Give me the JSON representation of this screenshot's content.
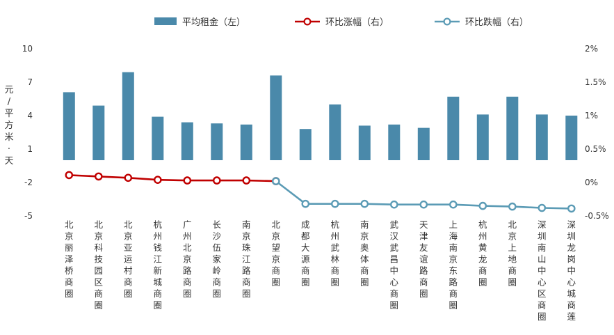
{
  "chart_data": {
    "type": "bar",
    "categories": [
      "北京丽泽桥商圈",
      "北京科技园区商圈",
      "北京亚运村商圈",
      "杭州钱江新城商圈",
      "广州北京路商圈",
      "长沙伍家岭商圈",
      "南京珠江路商圈",
      "北京望京商圈",
      "成都大源商圈",
      "杭州武林商圈",
      "南京奥体商圈",
      "武汉武昌中心商圈",
      "天津友谊路商圈",
      "上海南京东路商圈",
      "杭州黄龙商圈",
      "北京上地商圈",
      "深圳南山中心区商圈",
      "深圳龙岗中心城商莲"
    ],
    "series": [
      {
        "name": "平均租金（左）",
        "axis": "left",
        "kind": "bar",
        "color": "#4a89aa",
        "values": [
          6.1,
          4.9,
          7.9,
          3.9,
          3.4,
          3.3,
          3.2,
          7.6,
          2.8,
          5.0,
          3.1,
          3.2,
          2.9,
          5.7,
          4.1,
          5.7,
          4.1,
          4.0
        ]
      },
      {
        "name": "环比涨幅（右）",
        "axis": "right",
        "kind": "line",
        "color": "#c00000",
        "values": [
          0.011,
          0.009,
          0.007,
          0.004,
          0.003,
          0.003,
          0.003,
          0.002,
          null,
          null,
          null,
          null,
          null,
          null,
          null,
          null,
          null,
          null
        ]
      },
      {
        "name": "环比跌幅（右）",
        "axis": "right",
        "kind": "line",
        "color": "#5b9bb5",
        "values": [
          null,
          null,
          null,
          null,
          null,
          null,
          null,
          0.002,
          -0.032,
          -0.032,
          -0.032,
          -0.033,
          -0.033,
          -0.033,
          -0.035,
          -0.036,
          -0.038,
          -0.039
        ]
      }
    ],
    "ylabel": "元/平方米·天",
    "y_left_ticks": [
      "10",
      "7",
      "4",
      "1",
      "-2",
      "-5"
    ],
    "y_left_range": [
      -5,
      10
    ],
    "y_right_ticks": [
      "2%",
      "1.5%",
      "1%",
      "0.5%",
      "0%",
      "-0.5%"
    ],
    "y_right_range": [
      -0.05,
      0.2
    ],
    "legend_position": "top",
    "grid": false
  }
}
